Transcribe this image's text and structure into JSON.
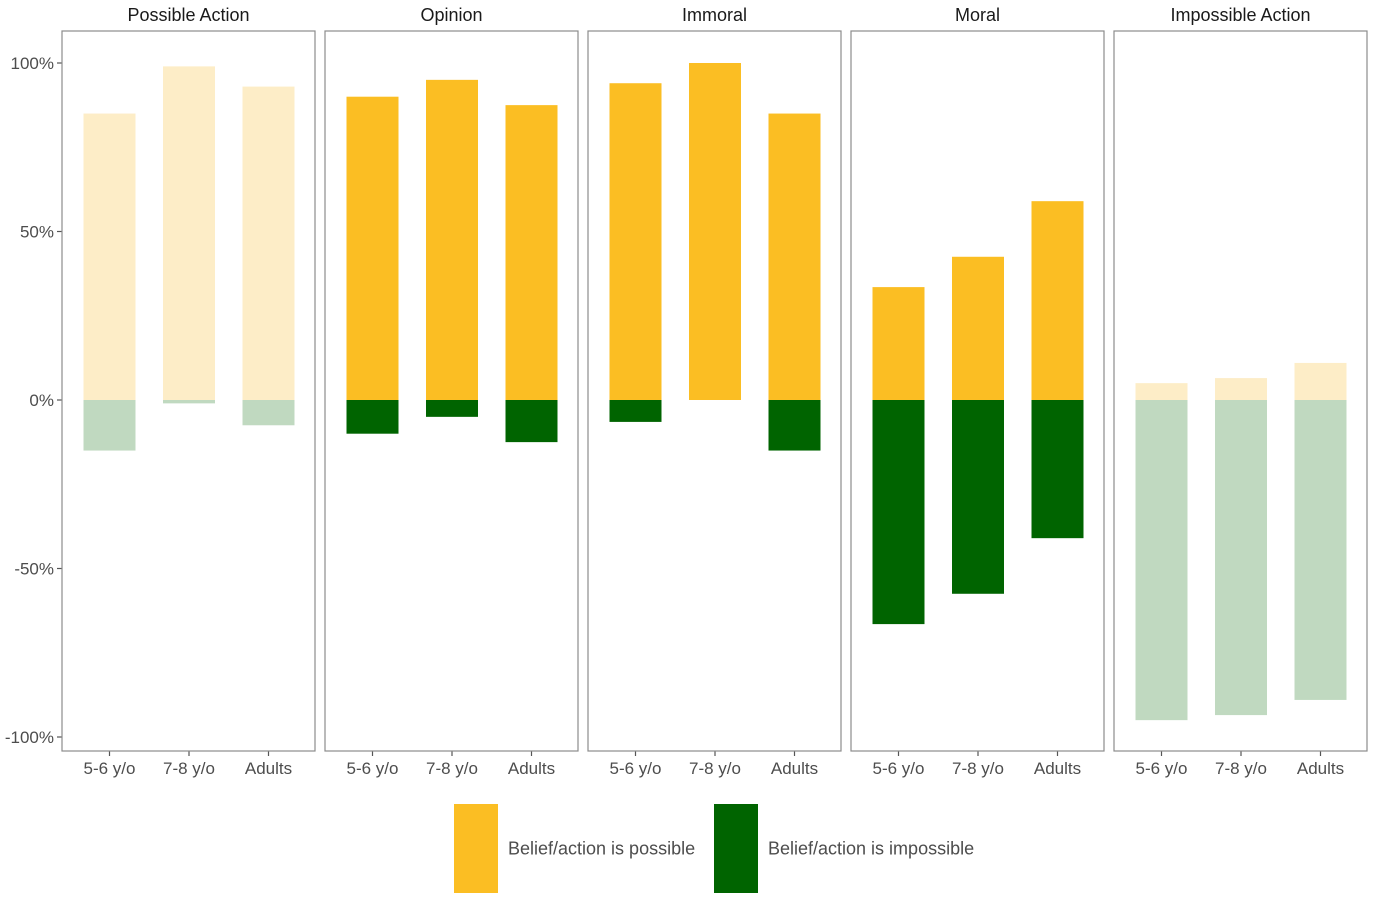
{
  "chart_data": {
    "type": "bar",
    "subtype": "diverging stacked bar, faceted",
    "y_ticks": [
      {
        "value": 100,
        "label": "100%"
      },
      {
        "value": 50,
        "label": "50%"
      },
      {
        "value": 0,
        "label": "0%"
      },
      {
        "value": -50,
        "label": "-50%"
      },
      {
        "value": -100,
        "label": "-100%"
      }
    ],
    "ylim": [
      -100,
      100
    ],
    "categories": [
      "5-6 y/o",
      "7-8 y/o",
      "Adults"
    ],
    "colors": {
      "possible": "#fbbe23",
      "impossible": "#006400",
      "possible_faded": "#fdedc7",
      "impossible_faded": "#c0d9c0"
    },
    "facets": [
      {
        "title": "Possible Action",
        "faded": true,
        "possible": [
          85,
          99,
          93
        ],
        "impossible": [
          -15,
          -1,
          -7.5
        ]
      },
      {
        "title": "Opinion",
        "faded": false,
        "possible": [
          90,
          95,
          87.5
        ],
        "impossible": [
          -10,
          -5,
          -12.5
        ]
      },
      {
        "title": "Immoral",
        "faded": false,
        "possible": [
          94,
          100,
          85
        ],
        "impossible": [
          -6.5,
          0,
          -15
        ]
      },
      {
        "title": "Moral",
        "faded": false,
        "possible": [
          33.5,
          42.5,
          59
        ],
        "impossible": [
          -66.5,
          -57.5,
          -41
        ]
      },
      {
        "title": "Impossible Action",
        "faded": true,
        "possible": [
          5,
          6.5,
          11
        ],
        "impossible": [
          -95,
          -93.5,
          -89
        ]
      }
    ],
    "legend": {
      "position": "bottom",
      "items": [
        {
          "key": "possible",
          "label": "Belief/action is possible"
        },
        {
          "key": "impossible",
          "label": "Belief/action is impossible"
        }
      ]
    },
    "grid": false
  }
}
